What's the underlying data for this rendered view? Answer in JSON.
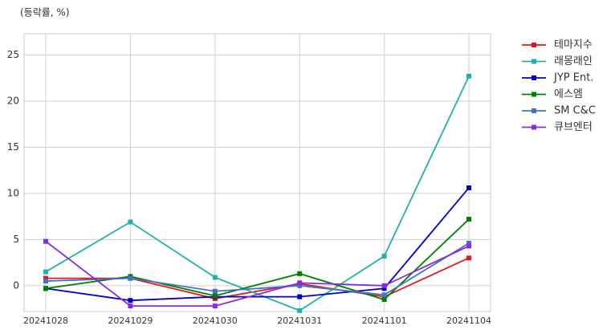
{
  "chart_data": {
    "type": "line",
    "title": "(등락률, %)",
    "categories": [
      "20241028",
      "20241029",
      "20241030",
      "20241031",
      "20241101",
      "20241104"
    ],
    "ylim": [
      -2.8,
      27.3
    ],
    "yticks": [
      0,
      5,
      10,
      15,
      20,
      25
    ],
    "grid": true,
    "series": [
      {
        "name": "테마지수",
        "color": "#e31a1c",
        "values": [
          0.8,
          0.8,
          -1.4,
          0.2,
          -1.2,
          3.0
        ]
      },
      {
        "name": "래몽래인",
        "color": "#20b2aa",
        "values": [
          1.5,
          6.9,
          0.9,
          -2.7,
          3.2,
          22.7
        ]
      },
      {
        "name": "JYP Ent.",
        "color": "#0000cd",
        "values": [
          -0.3,
          -1.6,
          -1.2,
          -1.2,
          -0.3,
          10.6
        ]
      },
      {
        "name": "에스엠",
        "color": "#008000",
        "values": [
          -0.3,
          1.0,
          -1.1,
          1.3,
          -1.5,
          7.2
        ]
      },
      {
        "name": "SM C&C",
        "color": "#4472c4",
        "values": [
          0.5,
          0.8,
          -0.6,
          0.0,
          -1.0,
          4.6
        ]
      },
      {
        "name": "큐브엔터",
        "color": "#8a2be2",
        "values": [
          4.8,
          -2.2,
          -2.2,
          0.3,
          0.0,
          4.3
        ]
      }
    ]
  }
}
